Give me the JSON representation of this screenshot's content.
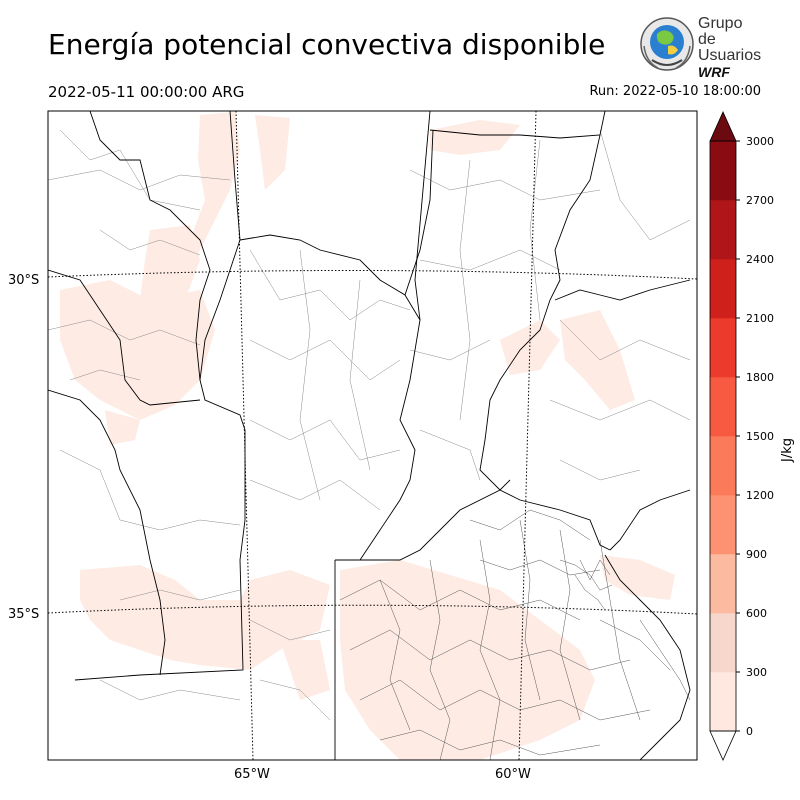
{
  "header": {
    "title": "Energía potencial convectiva disponible",
    "valid_time": "2022-05-11 00:00:00 ARG",
    "run_time": "Run: 2022-05-10 18:00:00"
  },
  "logo": {
    "line1": "Grupo de",
    "line2": "Usuarios",
    "line3": "WRF"
  },
  "map": {
    "lat_labels": [
      "30°S",
      "35°S"
    ],
    "lon_labels": [
      "65°W",
      "60°W"
    ]
  },
  "colorbar": {
    "unit_label": "J/kg",
    "levels": [
      0,
      300,
      600,
      900,
      1200,
      1500,
      1800,
      2100,
      2400,
      2700,
      3000
    ],
    "tick_labels": [
      "0",
      "300",
      "600",
      "900",
      "1200",
      "1500",
      "1800",
      "2100",
      "2400",
      "2700",
      "3000"
    ],
    "colors": [
      "#fee8e0",
      "#f7d6cc",
      "#fcbba1",
      "#fc9272",
      "#fb7a5a",
      "#f75a40",
      "#ec3a2c",
      "#d0201c",
      "#b0151a",
      "#8a0c12"
    ],
    "over_color": "#6b0a10",
    "under_color": "#ffffff"
  },
  "colors": {
    "cape_low": "#fdebe4",
    "border": "#000000",
    "department_lines": "#888888"
  }
}
